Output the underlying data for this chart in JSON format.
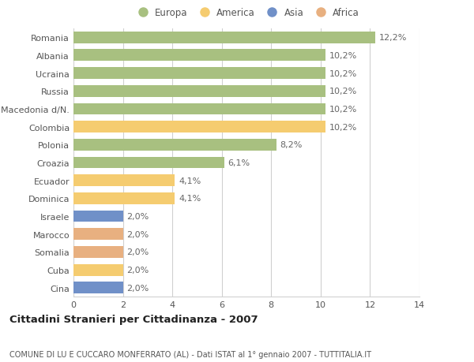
{
  "countries": [
    "Romania",
    "Albania",
    "Ucraina",
    "Russia",
    "Macedonia d/N.",
    "Colombia",
    "Polonia",
    "Croazia",
    "Ecuador",
    "Dominica",
    "Israele",
    "Marocco",
    "Somalia",
    "Cuba",
    "Cina"
  ],
  "values": [
    12.2,
    10.2,
    10.2,
    10.2,
    10.2,
    10.2,
    8.2,
    6.1,
    4.1,
    4.1,
    2.0,
    2.0,
    2.0,
    2.0,
    2.0
  ],
  "labels": [
    "12,2%",
    "10,2%",
    "10,2%",
    "10,2%",
    "10,2%",
    "10,2%",
    "8,2%",
    "6,1%",
    "4,1%",
    "4,1%",
    "2,0%",
    "2,0%",
    "2,0%",
    "2,0%",
    "2,0%"
  ],
  "categories": [
    "Europa",
    "America",
    "Asia",
    "Africa"
  ],
  "continent": [
    "Europa",
    "Europa",
    "Europa",
    "Europa",
    "Europa",
    "America",
    "Europa",
    "Europa",
    "America",
    "America",
    "Asia",
    "Africa",
    "Africa",
    "America",
    "Asia"
  ],
  "colors": {
    "Europa": "#a8c080",
    "America": "#f5cc70",
    "Asia": "#7090c8",
    "Africa": "#e8b080"
  },
  "xlim": [
    0,
    14
  ],
  "xticks": [
    0,
    2,
    4,
    6,
    8,
    10,
    12,
    14
  ],
  "title": "Cittadini Stranieri per Cittadinanza - 2007",
  "subtitle": "COMUNE DI LU E CUCCARO MONFERRATO (AL) - Dati ISTAT al 1° gennaio 2007 - TUTTITALIA.IT",
  "bg_color": "#ffffff",
  "bar_height": 0.65,
  "grid_color": "#d0d0d0",
  "label_fontsize": 8,
  "tick_fontsize": 8,
  "title_fontsize": 9.5,
  "subtitle_fontsize": 7
}
